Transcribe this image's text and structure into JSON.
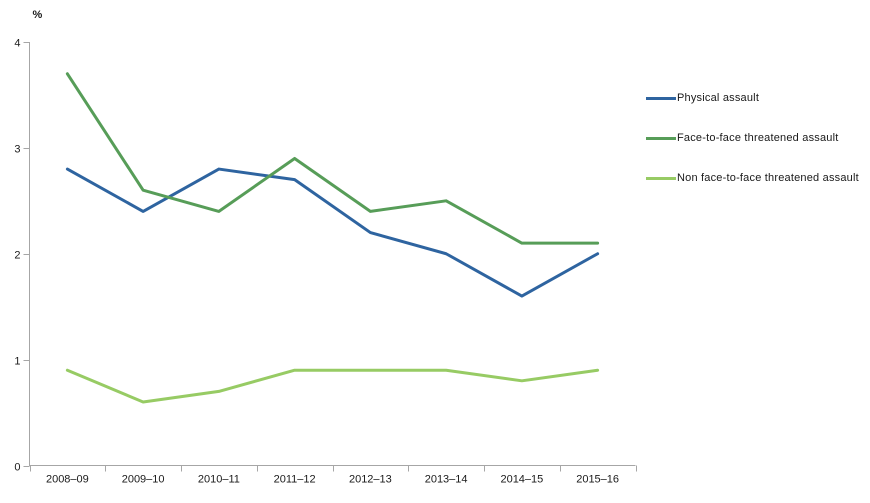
{
  "chart_data": {
    "type": "line",
    "title": "",
    "ylabel_unit": "%",
    "xlabel": "",
    "categories": [
      "2008–09",
      "2009–10",
      "2010–11",
      "2011–12",
      "2012–13",
      "2013–14",
      "2014–15",
      "2015–16"
    ],
    "series": [
      {
        "name": "Physical assault",
        "color": "#2E64A0",
        "values": [
          2.8,
          2.4,
          2.8,
          2.7,
          2.2,
          2.0,
          1.6,
          2.0
        ]
      },
      {
        "name": "Face-to-face threatened assault",
        "color": "#579D58",
        "values": [
          3.7,
          2.6,
          2.4,
          2.9,
          2.4,
          2.5,
          2.1,
          2.1
        ]
      },
      {
        "name": "Non face-to-face threatened assault",
        "color": "#97CB64",
        "values": [
          0.9,
          0.6,
          0.7,
          0.9,
          0.9,
          0.9,
          0.8,
          0.9
        ]
      }
    ],
    "ylim": [
      0,
      4
    ],
    "yticks": [
      0,
      1,
      2,
      3,
      4
    ],
    "grid": false,
    "legend_position": "right",
    "axis_color": "#A6A6A6",
    "text_color": "#1a1a1a"
  }
}
